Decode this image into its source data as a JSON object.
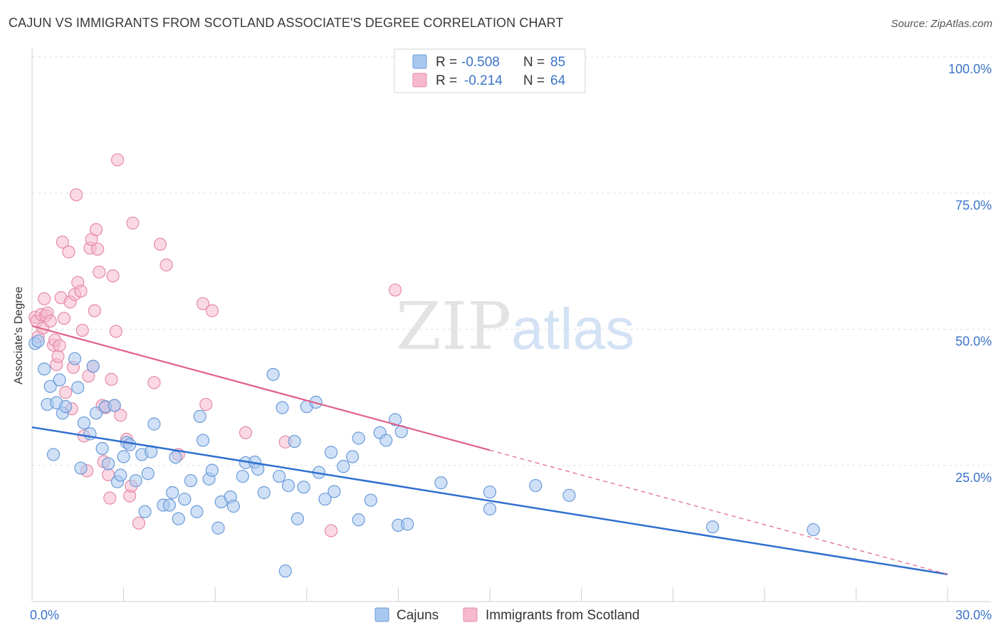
{
  "header": {
    "title": "CAJUN VS IMMIGRANTS FROM SCOTLAND ASSOCIATE'S DEGREE CORRELATION CHART",
    "source": "Source: ZipAtlas.com"
  },
  "watermark": {
    "zip": "ZIP",
    "atlas": "atlas"
  },
  "legend_box": {
    "rows": [
      {
        "r_label": "R =",
        "r_value": "-0.508",
        "n_label": "N =",
        "n_value": "85",
        "color": "#a9c8f0"
      },
      {
        "r_label": "R =",
        "r_value": "-0.214",
        "n_label": "N =",
        "n_value": "64",
        "color": "#f6b9cd"
      }
    ]
  },
  "colors": {
    "cajuns_fill": "#a9c8f0",
    "cajuns_stroke": "#6a9bd8",
    "cajuns_line": "#2f6fcf",
    "scotland_fill": "#f6b9cd",
    "scotland_stroke": "#e58aa8",
    "scotland_line": "#e0608a",
    "axis_text": "#3b73c8"
  },
  "chart_data": {
    "type": "scatter",
    "title": "CAJUN VS IMMIGRANTS FROM SCOTLAND ASSOCIATE'S DEGREE CORRELATION CHART",
    "xlabel": "",
    "ylabel": "Associate's Degree",
    "xlim": [
      0,
      30
    ],
    "ylim": [
      0,
      100
    ],
    "x_tick_labels": [
      "0.0%",
      "30.0%"
    ],
    "y_ticks": [
      25,
      50,
      75,
      100
    ],
    "y_tick_labels": [
      "25.0%",
      "50.0%",
      "75.0%",
      "100.0%"
    ],
    "grid": true,
    "legend_position": "bottom",
    "series": [
      {
        "name": "Cajuns",
        "r": -0.508,
        "n": 85,
        "trend": {
          "x": [
            0,
            30
          ],
          "y": [
            32.0,
            5.0
          ]
        },
        "points": [
          [
            0.1,
            47.4
          ],
          [
            0.2,
            47.8
          ],
          [
            0.4,
            42.7
          ],
          [
            0.5,
            36.2
          ],
          [
            0.6,
            39.5
          ],
          [
            0.7,
            27.0
          ],
          [
            0.8,
            36.5
          ],
          [
            0.9,
            40.7
          ],
          [
            1.0,
            34.6
          ],
          [
            1.1,
            35.8
          ],
          [
            1.4,
            44.6
          ],
          [
            1.5,
            39.3
          ],
          [
            1.6,
            24.5
          ],
          [
            1.7,
            32.8
          ],
          [
            1.9,
            30.8
          ],
          [
            2.0,
            43.2
          ],
          [
            2.1,
            34.6
          ],
          [
            2.3,
            28.1
          ],
          [
            2.4,
            35.8
          ],
          [
            2.5,
            25.3
          ],
          [
            2.7,
            36.0
          ],
          [
            2.8,
            22.0
          ],
          [
            2.9,
            23.2
          ],
          [
            3.0,
            26.6
          ],
          [
            3.1,
            29.2
          ],
          [
            3.2,
            28.8
          ],
          [
            3.4,
            22.2
          ],
          [
            3.6,
            27.0
          ],
          [
            3.7,
            16.5
          ],
          [
            3.8,
            23.5
          ],
          [
            3.9,
            27.5
          ],
          [
            4.0,
            32.6
          ],
          [
            4.3,
            17.7
          ],
          [
            4.5,
            17.7
          ],
          [
            4.6,
            20.0
          ],
          [
            4.7,
            26.5
          ],
          [
            4.8,
            15.2
          ],
          [
            5.0,
            18.8
          ],
          [
            5.2,
            22.2
          ],
          [
            5.4,
            16.5
          ],
          [
            5.5,
            34.0
          ],
          [
            5.6,
            29.6
          ],
          [
            5.8,
            22.5
          ],
          [
            5.9,
            24.1
          ],
          [
            6.1,
            13.5
          ],
          [
            6.2,
            18.3
          ],
          [
            6.5,
            19.2
          ],
          [
            6.6,
            17.5
          ],
          [
            6.9,
            23.0
          ],
          [
            7.0,
            25.5
          ],
          [
            7.3,
            25.6
          ],
          [
            7.4,
            24.3
          ],
          [
            7.6,
            20.0
          ],
          [
            7.9,
            41.7
          ],
          [
            8.1,
            23.0
          ],
          [
            8.2,
            35.6
          ],
          [
            8.3,
            5.6
          ],
          [
            8.4,
            21.3
          ],
          [
            8.6,
            29.4
          ],
          [
            8.7,
            15.2
          ],
          [
            8.9,
            21.0
          ],
          [
            9.0,
            35.8
          ],
          [
            9.3,
            36.6
          ],
          [
            9.4,
            23.7
          ],
          [
            9.6,
            18.8
          ],
          [
            9.8,
            27.4
          ],
          [
            9.9,
            20.2
          ],
          [
            10.2,
            24.8
          ],
          [
            10.5,
            26.6
          ],
          [
            10.7,
            15.0
          ],
          [
            10.7,
            30.0
          ],
          [
            11.1,
            18.6
          ],
          [
            11.4,
            31.0
          ],
          [
            11.6,
            29.6
          ],
          [
            11.9,
            33.4
          ],
          [
            12.0,
            14.0
          ],
          [
            12.1,
            31.2
          ],
          [
            12.3,
            14.2
          ],
          [
            13.4,
            21.8
          ],
          [
            15.0,
            20.1
          ],
          [
            15.0,
            17.0
          ],
          [
            16.5,
            21.3
          ],
          [
            17.6,
            19.5
          ],
          [
            22.3,
            13.7
          ],
          [
            25.6,
            13.2
          ]
        ]
      },
      {
        "name": "Immigrants from Scotland",
        "r": -0.214,
        "n": 64,
        "trend": {
          "x": [
            0,
            15
          ],
          "y": [
            50.6,
            27.8
          ]
        },
        "trend_dashed": {
          "x": [
            15,
            30
          ],
          "y": [
            27.8,
            5.0
          ]
        },
        "points": [
          [
            0.1,
            52.2
          ],
          [
            0.15,
            51.5
          ],
          [
            0.2,
            48.6
          ],
          [
            0.3,
            52.7
          ],
          [
            0.35,
            50.2
          ],
          [
            0.4,
            55.6
          ],
          [
            0.45,
            52.5
          ],
          [
            0.5,
            53.0
          ],
          [
            0.6,
            51.5
          ],
          [
            0.7,
            47.1
          ],
          [
            0.75,
            48.0
          ],
          [
            0.8,
            43.5
          ],
          [
            0.85,
            45.0
          ],
          [
            0.9,
            47.0
          ],
          [
            0.95,
            55.8
          ],
          [
            1.0,
            66.0
          ],
          [
            1.05,
            52.0
          ],
          [
            1.1,
            38.4
          ],
          [
            1.2,
            64.2
          ],
          [
            1.25,
            55.0
          ],
          [
            1.3,
            35.4
          ],
          [
            1.35,
            43.0
          ],
          [
            1.4,
            56.4
          ],
          [
            1.45,
            74.7
          ],
          [
            1.5,
            58.6
          ],
          [
            1.6,
            57.0
          ],
          [
            1.65,
            49.8
          ],
          [
            1.7,
            30.4
          ],
          [
            1.8,
            24.0
          ],
          [
            1.85,
            41.4
          ],
          [
            1.9,
            64.9
          ],
          [
            1.95,
            66.5
          ],
          [
            2.0,
            43.2
          ],
          [
            2.05,
            53.4
          ],
          [
            2.1,
            68.3
          ],
          [
            2.15,
            64.7
          ],
          [
            2.3,
            36.0
          ],
          [
            2.35,
            25.7
          ],
          [
            2.4,
            35.6
          ],
          [
            2.5,
            23.3
          ],
          [
            2.55,
            19.0
          ],
          [
            2.6,
            40.8
          ],
          [
            2.65,
            59.8
          ],
          [
            2.7,
            36.0
          ],
          [
            2.75,
            49.6
          ],
          [
            2.8,
            81.1
          ],
          [
            2.9,
            34.2
          ],
          [
            3.1,
            29.8
          ],
          [
            3.2,
            19.4
          ],
          [
            3.25,
            21.2
          ],
          [
            3.3,
            69.5
          ],
          [
            3.5,
            14.4
          ],
          [
            4.0,
            40.2
          ],
          [
            4.2,
            65.6
          ],
          [
            4.4,
            61.8
          ],
          [
            4.8,
            27.0
          ],
          [
            5.6,
            54.7
          ],
          [
            5.7,
            36.2
          ],
          [
            5.9,
            53.4
          ],
          [
            7.0,
            31.0
          ],
          [
            8.3,
            29.3
          ],
          [
            9.8,
            13.0
          ],
          [
            11.9,
            57.2
          ],
          [
            2.2,
            60.5
          ]
        ]
      }
    ]
  }
}
